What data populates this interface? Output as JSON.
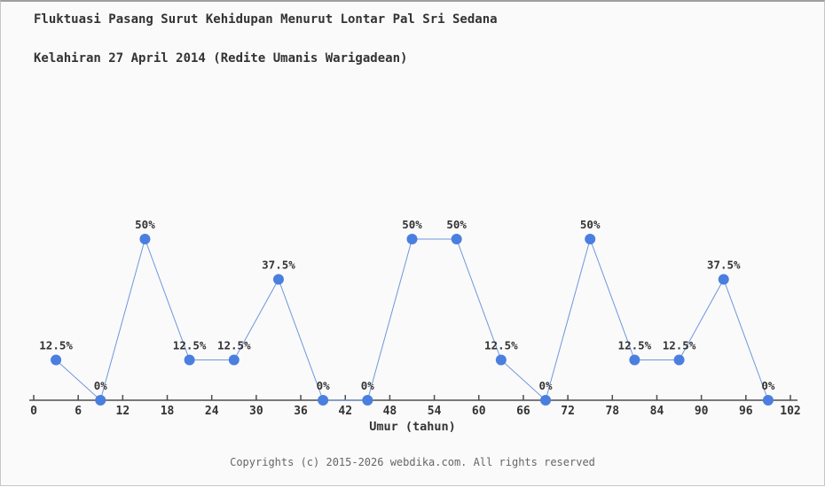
{
  "page": {
    "title_line1": "Fluktuasi Pasang Surut Kehidupan Menurut Lontar Pal Sri Sedana",
    "title_line2": "Kelahiran 27 April 2014 (Redite Umanis Warigadean)",
    "footer": "Copyrights (c) 2015-2026 webdika.com. All rights reserved"
  },
  "chart_data": {
    "type": "line",
    "title": "Fluktuasi Pasang Surut Kehidupan Menurut Lontar Pal Sri Sedana Kelahiran 27 April 2014 (Redite Umanis Warigadean)",
    "xlabel": "Umur (tahun)",
    "ylabel": "",
    "x": [
      3,
      9,
      15,
      21,
      27,
      33,
      39,
      45,
      51,
      57,
      63,
      69,
      75,
      81,
      87,
      93,
      99
    ],
    "values": [
      12.5,
      0,
      50,
      12.5,
      12.5,
      37.5,
      0,
      0,
      50,
      50,
      12.5,
      0,
      50,
      12.5,
      12.5,
      37.5,
      0
    ],
    "point_labels": [
      "12.5%",
      "0%",
      "50%",
      "12.5%",
      "12.5%",
      "37.5%",
      "0%",
      "0%",
      "50%",
      "50%",
      "12.5%",
      "0%",
      "50%",
      "12.5%",
      "12.5%",
      "37.5%",
      "0%"
    ],
    "x_ticks": [
      0,
      6,
      12,
      18,
      24,
      30,
      36,
      42,
      48,
      54,
      60,
      66,
      72,
      78,
      84,
      90,
      96,
      102
    ],
    "xlim": [
      0,
      102
    ],
    "ylim": [
      0,
      55
    ],
    "grid": false,
    "legend_position": "none",
    "line_color": "#6f96dd",
    "marker_color": "#4a7fe0",
    "axis_color": "#4d4d4d",
    "label_color": "#333333"
  }
}
